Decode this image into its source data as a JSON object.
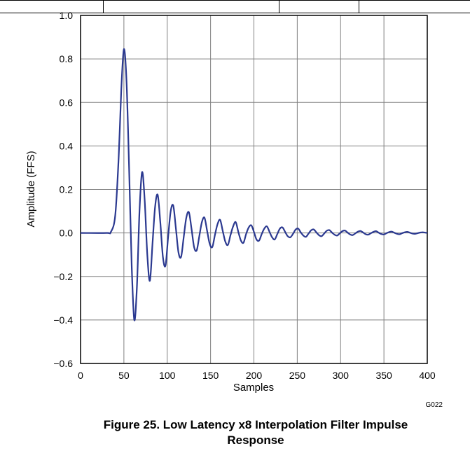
{
  "chart_data": {
    "type": "line",
    "title": "",
    "xlabel": "Samples",
    "ylabel": "Amplitude (FFS)",
    "xlim": [
      0,
      400
    ],
    "ylim": [
      -0.6,
      1.0
    ],
    "xticks": [
      "0",
      "50",
      "100",
      "150",
      "200",
      "250",
      "300",
      "350",
      "400"
    ],
    "yticks": [
      "1.0",
      "0.8",
      "0.6",
      "0.4",
      "0.2",
      "0.0",
      "−0.2",
      "−0.4",
      "−0.6"
    ],
    "grid": true,
    "legend": "none",
    "line_color": "#2b3990",
    "series": [
      {
        "x": [
          0,
          30,
          35,
          40,
          44,
          47,
          50,
          53,
          56,
          59,
          62,
          65,
          68,
          71,
          74,
          77,
          80,
          83,
          86,
          89,
          92,
          95,
          98,
          101,
          104,
          107,
          110,
          113,
          116,
          119,
          122,
          125,
          128,
          131,
          134,
          137,
          140,
          143,
          146,
          149,
          152,
          155,
          158,
          161,
          164,
          167,
          170,
          173,
          176,
          179,
          182,
          185,
          188,
          191,
          194,
          197,
          200,
          203,
          206,
          209,
          212,
          215,
          218,
          221,
          224,
          227,
          230,
          233,
          236,
          239,
          242,
          245,
          248,
          251,
          254,
          257,
          260,
          263,
          266,
          269,
          272,
          275,
          278,
          281,
          284,
          287,
          290,
          293,
          296,
          299,
          302,
          305,
          308,
          311,
          314,
          317,
          320,
          323,
          326,
          329,
          332,
          335,
          338,
          341,
          344,
          347,
          350,
          353,
          356,
          359,
          362,
          365,
          368,
          371,
          374,
          377,
          380,
          383,
          386,
          389,
          392,
          395,
          400
        ],
        "y": [
          0.0,
          0.0,
          0.005,
          0.08,
          0.35,
          0.66,
          0.845,
          0.7,
          0.3,
          -0.15,
          -0.4,
          -0.25,
          0.1,
          0.28,
          0.15,
          -0.1,
          -0.22,
          -0.05,
          0.12,
          0.175,
          0.05,
          -0.11,
          -0.15,
          -0.02,
          0.1,
          0.125,
          0.02,
          -0.09,
          -0.11,
          -0.02,
          0.07,
          0.095,
          0.02,
          -0.065,
          -0.08,
          -0.015,
          0.05,
          0.07,
          0.01,
          -0.05,
          -0.065,
          -0.01,
          0.04,
          0.06,
          0.01,
          -0.04,
          -0.055,
          -0.01,
          0.03,
          0.05,
          0.005,
          -0.035,
          -0.045,
          -0.005,
          0.025,
          0.035,
          0.005,
          -0.03,
          -0.035,
          -0.005,
          0.02,
          0.03,
          0.005,
          -0.02,
          -0.03,
          -0.005,
          0.02,
          0.025,
          0.005,
          -0.015,
          -0.02,
          -0.005,
          0.015,
          0.02,
          0.003,
          -0.012,
          -0.018,
          -0.003,
          0.012,
          0.016,
          0.003,
          -0.01,
          -0.015,
          -0.003,
          0.01,
          0.013,
          0.002,
          -0.008,
          -0.012,
          -0.002,
          0.008,
          0.011,
          0.002,
          -0.007,
          -0.01,
          -0.002,
          0.006,
          0.009,
          0.002,
          -0.006,
          -0.008,
          -0.001,
          0.005,
          0.008,
          0.001,
          -0.005,
          -0.007,
          -0.001,
          0.004,
          0.006,
          0.001,
          -0.004,
          -0.006,
          -0.001,
          0.003,
          0.005,
          0.001,
          -0.003,
          -0.004,
          -0.001,
          0.002,
          0.003,
          0.0
        ]
      }
    ]
  },
  "figure_id": "G022",
  "caption_line1": "Figure 25. Low Latency x8 Interpolation Filter Impulse",
  "caption_line2": "Response"
}
